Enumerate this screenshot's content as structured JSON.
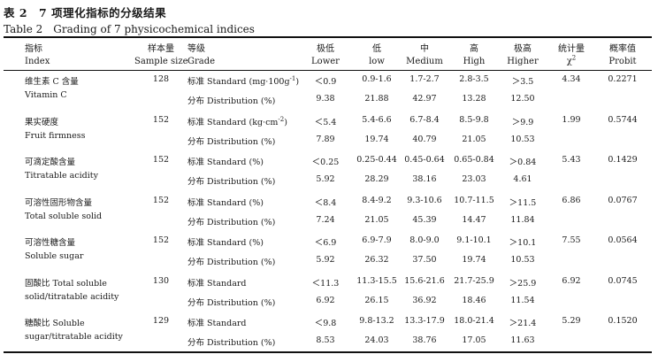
{
  "caption": {
    "cn": "表 2　7 项理化指标的分级结果",
    "en": "Table 2　Grading of 7 physicochemical indices"
  },
  "header": {
    "index_cn": "指标",
    "index_en": "Index",
    "size_cn": "样本量",
    "size_en": "Sample size",
    "grade_cn": "等级",
    "grade_en": "Grade",
    "lower_cn": "极低",
    "lower_en": "Lower",
    "low_cn": "低",
    "low_en": "low",
    "medium_cn": "中",
    "medium_en": "Medium",
    "high_cn": "高",
    "high_en": "High",
    "higher_cn": "极高",
    "higher_en": "Higher",
    "stat_cn": "统计量",
    "stat_en": "χ",
    "stat_sup": "2",
    "prob_cn": "概率值",
    "prob_en": "Probit"
  },
  "rows": [
    {
      "cn": "维生素 C 含量",
      "en": "Vitamin C",
      "n": "128",
      "std_label": "标准 Standard (mg·100g",
      "std_sup": "-1",
      "std_close": ")",
      "std": [
        "＜0.9",
        "0.9-1.6",
        "1.7-2.7",
        "2.8-3.5",
        "＞3.5"
      ],
      "dist_label": "分布 Distribution (%)",
      "dist": [
        "9.38",
        "21.88",
        "42.97",
        "13.28",
        "12.50"
      ],
      "chi": "4.34",
      "p": "0.2271"
    },
    {
      "cn": "果实硬度",
      "en": "Fruit firmness",
      "n": "152",
      "std_label": "标准 Standard (kg·cm",
      "std_sup": "-2",
      "std_close": ")",
      "std": [
        "＜5.4",
        "5.4-6.6",
        "6.7-8.4",
        "8.5-9.8",
        "＞9.9"
      ],
      "dist_label": "分布 Distribution (%)",
      "dist": [
        "7.89",
        "19.74",
        "40.79",
        "21.05",
        "10.53"
      ],
      "chi": "1.99",
      "p": "0.5744"
    },
    {
      "cn": "可滴定酸含量",
      "en": "Titratable acidity",
      "n": "152",
      "std_label": "标准 Standard (%)",
      "std_sup": "",
      "std_close": "",
      "std": [
        "＜0.25",
        "0.25-0.44",
        "0.45-0.64",
        "0.65-0.84",
        "＞0.84"
      ],
      "dist_label": "分布 Distribution (%)",
      "dist": [
        "5.92",
        "28.29",
        "38.16",
        "23.03",
        "4.61"
      ],
      "chi": "5.43",
      "p": "0.1429"
    },
    {
      "cn": "可溶性固形物含量",
      "en": "Total soluble solid",
      "n": "152",
      "std_label": "标准 Standard (%)",
      "std_sup": "",
      "std_close": "",
      "std": [
        "＜8.4",
        "8.4-9.2",
        "9.3-10.6",
        "10.7-11.5",
        "＞11.5"
      ],
      "dist_label": "分布 Distribution (%)",
      "dist": [
        "7.24",
        "21.05",
        "45.39",
        "14.47",
        "11.84"
      ],
      "chi": "6.86",
      "p": "0.0767"
    },
    {
      "cn": "可溶性糖含量",
      "en": "Soluble sugar",
      "n": "152",
      "std_label": "标准 Standard (%)",
      "std_sup": "",
      "std_close": "",
      "std": [
        "＜6.9",
        "6.9-7.9",
        "8.0-9.0",
        "9.1-10.1",
        "＞10.1"
      ],
      "dist_label": "分布 Distribution (%)",
      "dist": [
        "5.92",
        "26.32",
        "37.50",
        "19.74",
        "10.53"
      ],
      "chi": "7.55",
      "p": "0.0564"
    },
    {
      "cn": "固酸比 Total soluble",
      "en": "solid/titratable acidity",
      "n": "130",
      "std_label": "标准 Standard",
      "std_sup": "",
      "std_close": "",
      "std": [
        "＜11.3",
        "11.3-15.5",
        "15.6-21.6",
        "21.7-25.9",
        "＞25.9"
      ],
      "dist_label": "分布 Distribution (%)",
      "dist": [
        "6.92",
        "26.15",
        "36.92",
        "18.46",
        "11.54"
      ],
      "chi": "6.92",
      "p": "0.0745"
    },
    {
      "cn": "糖酸比 Soluble",
      "en": "sugar/titratable acidity",
      "n": "129",
      "std_label": "标准 Standard",
      "std_sup": "",
      "std_close": "",
      "std": [
        "＜9.8",
        "9.8-13.2",
        "13.3-17.9",
        "18.0-21.4",
        "＞21.4"
      ],
      "dist_label": "分布 Distribution (%)",
      "dist": [
        "8.53",
        "24.03",
        "38.76",
        "17.05",
        "11.63"
      ],
      "chi": "5.29",
      "p": "0.1520"
    }
  ]
}
